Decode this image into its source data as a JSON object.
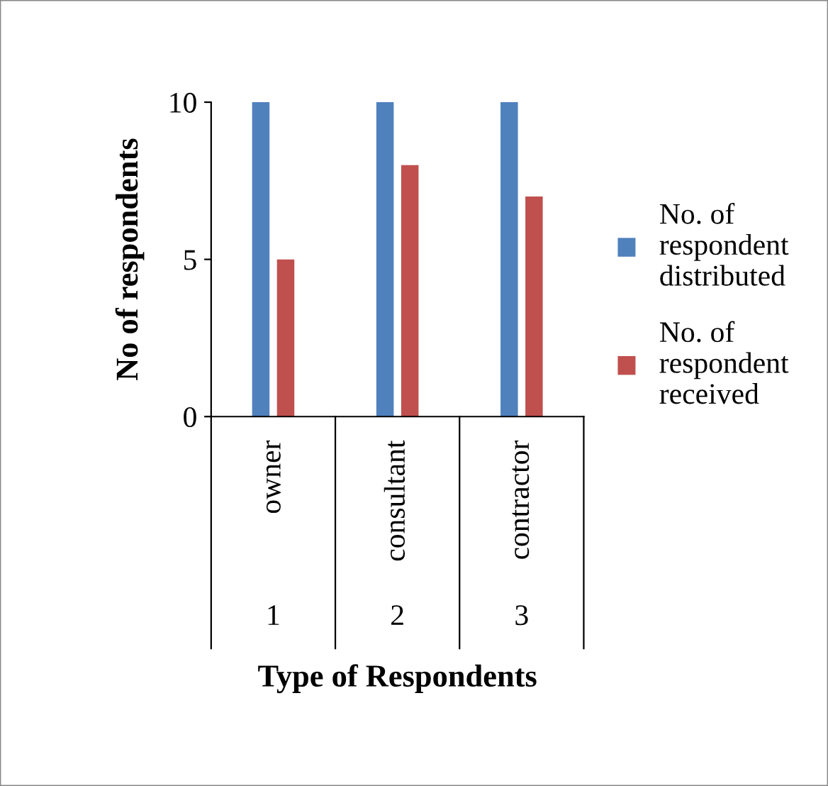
{
  "chart_data": {
    "type": "bar",
    "xlabel": "Type of Respondents",
    "ylabel": "No of respondents",
    "categories": [
      "owner",
      "consultant",
      "contractor"
    ],
    "series": [
      {
        "name": "No. of respondent distributed",
        "color": "#4f81bd",
        "values": [
          10,
          10,
          10
        ]
      },
      {
        "name": "No. of respondent received",
        "color": "#c0504d",
        "values": [
          5,
          8,
          7
        ]
      }
    ],
    "annotations": [
      "1",
      "2",
      "3"
    ],
    "ylim": [
      0,
      10
    ],
    "yticks": [
      0,
      5,
      10
    ],
    "grid": false,
    "legend": "right"
  }
}
